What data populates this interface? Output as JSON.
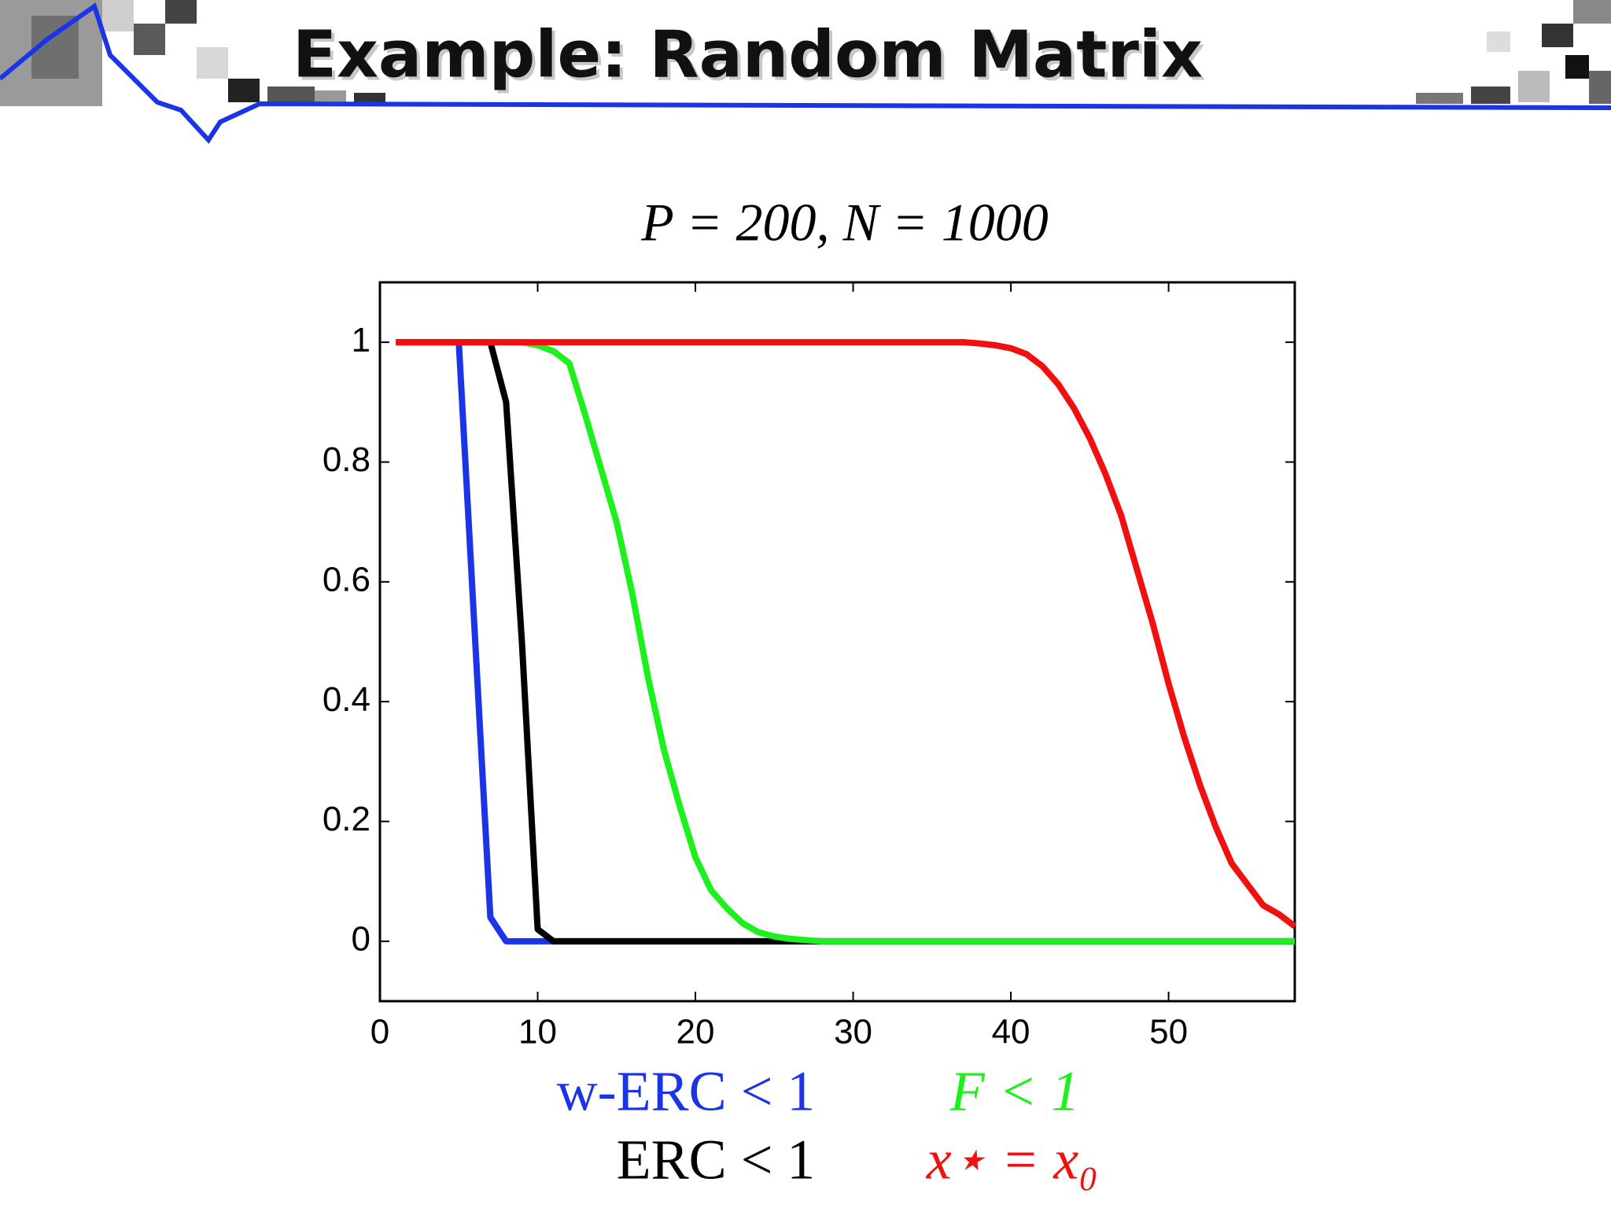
{
  "slide_title": "Example: Random Matrix",
  "chart_data": {
    "type": "line",
    "title": "P = 200, N = 1000",
    "x": [
      1,
      2,
      3,
      4,
      5,
      6,
      7,
      8,
      9,
      10,
      11,
      12,
      13,
      14,
      15,
      16,
      17,
      18,
      19,
      20,
      21,
      22,
      23,
      24,
      25,
      26,
      27,
      28,
      29,
      30,
      31,
      32,
      33,
      34,
      35,
      36,
      37,
      38,
      39,
      40,
      41,
      42,
      43,
      44,
      45,
      46,
      47,
      48,
      49,
      50,
      51,
      52,
      53,
      54,
      55,
      56,
      57,
      58
    ],
    "xlim": [
      0,
      58
    ],
    "xticks": [
      0,
      10,
      20,
      30,
      40,
      50
    ],
    "ylim": [
      -0.1,
      1.1
    ],
    "yticks": [
      0,
      0.2,
      0.4,
      0.6,
      0.8,
      1
    ],
    "series": [
      {
        "name": "w-ERC < 1",
        "color": "#1a34e6",
        "values": [
          1,
          1,
          1,
          1,
          1,
          0.52,
          0.04,
          0,
          0,
          0,
          0,
          0,
          0,
          0,
          0,
          0,
          0,
          0,
          0,
          0,
          0,
          0,
          0,
          0,
          0,
          0,
          0,
          0,
          0,
          0,
          0,
          0,
          0,
          0,
          0,
          0,
          0,
          0,
          0,
          0,
          0,
          0,
          0,
          0,
          0,
          0,
          0,
          0,
          0,
          0,
          0,
          0,
          0,
          0,
          0,
          0,
          0,
          0
        ]
      },
      {
        "name": "F < 1",
        "color": "#1ef01e",
        "values": [
          1,
          1,
          1,
          1,
          1,
          1,
          1,
          1,
          1,
          0.995,
          0.985,
          0.965,
          0.88,
          0.79,
          0.7,
          0.58,
          0.44,
          0.32,
          0.226,
          0.14,
          0.085,
          0.055,
          0.03,
          0.015,
          0.008,
          0.004,
          0.002,
          0,
          0,
          0,
          0,
          0,
          0,
          0,
          0,
          0,
          0,
          0,
          0,
          0,
          0,
          0,
          0,
          0,
          0,
          0,
          0,
          0,
          0,
          0,
          0,
          0,
          0,
          0,
          0,
          0,
          0,
          0
        ]
      },
      {
        "name": "ERC < 1",
        "color": "#000000",
        "values": [
          1,
          1,
          1,
          1,
          1,
          1,
          1,
          0.9,
          0.5,
          0.02,
          0,
          0,
          0,
          0,
          0,
          0,
          0,
          0,
          0,
          0,
          0,
          0,
          0,
          0,
          0,
          0,
          0,
          0,
          0,
          0,
          0,
          0,
          0,
          0,
          0,
          0,
          0,
          0,
          0,
          0,
          0,
          0,
          0,
          0,
          0,
          0,
          0,
          0,
          0,
          0,
          0,
          0,
          0,
          0,
          0,
          0,
          0,
          0
        ]
      },
      {
        "name": "x⋆ = x₀",
        "color": "#f01010",
        "values": [
          1,
          1,
          1,
          1,
          1,
          1,
          1,
          1,
          1,
          1,
          1,
          1,
          1,
          1,
          1,
          1,
          1,
          1,
          1,
          1,
          1,
          1,
          1,
          1,
          1,
          1,
          1,
          1,
          1,
          1,
          1,
          1,
          1,
          1,
          1,
          1,
          1,
          0.998,
          0.995,
          0.99,
          0.98,
          0.96,
          0.93,
          0.89,
          0.84,
          0.78,
          0.71,
          0.62,
          0.53,
          0.43,
          0.34,
          0.26,
          0.19,
          0.13,
          0.095,
          0.06,
          0.045,
          0.025
        ]
      }
    ]
  }
}
